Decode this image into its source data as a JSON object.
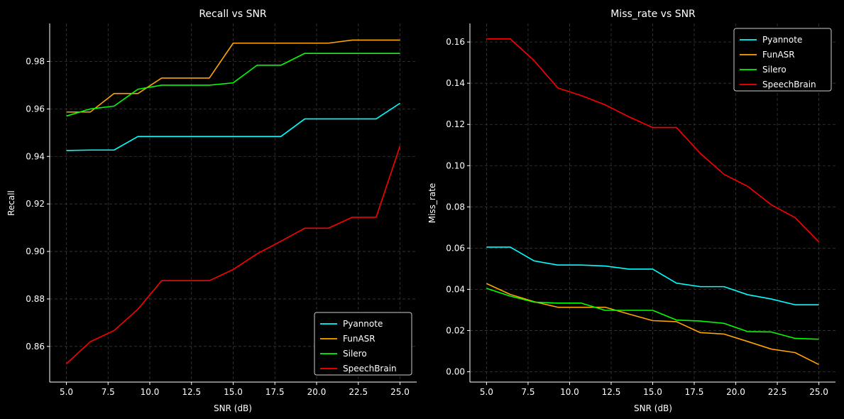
{
  "chart_data": [
    {
      "type": "line",
      "title": "Recall vs SNR",
      "xlabel": "SNR (dB)",
      "ylabel": "Recall",
      "xlim": [
        4.0,
        26.0
      ],
      "ylim": [
        0.845,
        0.996
      ],
      "xticks": [
        5.0,
        7.5,
        10.0,
        12.5,
        15.0,
        17.5,
        20.0,
        22.5,
        25.0
      ],
      "xtick_labels": [
        "5.0",
        "7.5",
        "10.0",
        "12.5",
        "15.0",
        "17.5",
        "20.0",
        "22.5",
        "25.0"
      ],
      "yticks": [
        0.86,
        0.88,
        0.9,
        0.92,
        0.94,
        0.96,
        0.98
      ],
      "ytick_labels": [
        "0.86",
        "0.88",
        "0.90",
        "0.92",
        "0.94",
        "0.96",
        "0.98"
      ],
      "grid": true,
      "legend_position": "lower-right",
      "x": [
        5.0,
        6.43,
        7.86,
        9.29,
        10.71,
        12.14,
        13.57,
        15.0,
        16.43,
        17.86,
        19.29,
        20.71,
        22.14,
        23.57,
        25.0
      ],
      "series": [
        {
          "name": "Pyannote",
          "color": "#00ffff",
          "values": [
            0.9425,
            0.9427,
            0.9427,
            0.9484,
            0.9484,
            0.9484,
            0.9484,
            0.9484,
            0.9484,
            0.9484,
            0.9558,
            0.9558,
            0.9558,
            0.9558,
            0.9624
          ]
        },
        {
          "name": "FunASR",
          "color": "#ffa500",
          "values": [
            0.9587,
            0.9587,
            0.9665,
            0.9665,
            0.973,
            0.973,
            0.973,
            0.9877,
            0.9877,
            0.9877,
            0.9877,
            0.9877,
            0.989,
            0.989,
            0.989
          ]
        },
        {
          "name": "Silero",
          "color": "#00ff00",
          "values": [
            0.957,
            0.96,
            0.9612,
            0.9683,
            0.97,
            0.97,
            0.97,
            0.971,
            0.9784,
            0.9784,
            0.9834,
            0.9834,
            0.9834,
            0.9834,
            0.9834
          ]
        },
        {
          "name": "SpeechBrain",
          "color": "#ff0000",
          "values": [
            0.8527,
            0.862,
            0.8667,
            0.8757,
            0.8877,
            0.8877,
            0.8877,
            0.8924,
            0.899,
            0.9043,
            0.9098,
            0.9098,
            0.9144,
            0.9144,
            0.9444
          ]
        }
      ]
    },
    {
      "type": "line",
      "title": "Miss_rate vs SNR",
      "xlabel": "SNR (dB)",
      "ylabel": "Miss_rate",
      "xlim": [
        4.0,
        26.0
      ],
      "ylim": [
        -0.005,
        0.169
      ],
      "xticks": [
        5.0,
        7.5,
        10.0,
        12.5,
        15.0,
        17.5,
        20.0,
        22.5,
        25.0
      ],
      "xtick_labels": [
        "5.0",
        "7.5",
        "10.0",
        "12.5",
        "15.0",
        "17.5",
        "20.0",
        "22.5",
        "25.0"
      ],
      "yticks": [
        0.0,
        0.02,
        0.04,
        0.06,
        0.08,
        0.1,
        0.12,
        0.14,
        0.16
      ],
      "ytick_labels": [
        "0.00",
        "0.02",
        "0.04",
        "0.06",
        "0.08",
        "0.10",
        "0.12",
        "0.14",
        "0.16"
      ],
      "grid": true,
      "legend_position": "upper-right",
      "x": [
        5.0,
        6.43,
        7.86,
        9.29,
        10.71,
        12.14,
        13.57,
        15.0,
        16.43,
        17.86,
        19.29,
        20.71,
        22.14,
        23.57,
        25.0
      ],
      "series": [
        {
          "name": "Pyannote",
          "color": "#00ffff",
          "values": [
            0.0605,
            0.0605,
            0.0538,
            0.0518,
            0.0518,
            0.0513,
            0.0498,
            0.0498,
            0.043,
            0.0413,
            0.0413,
            0.0374,
            0.0353,
            0.0325,
            0.0325
          ]
        },
        {
          "name": "FunASR",
          "color": "#ffa500",
          "values": [
            0.0428,
            0.0375,
            0.034,
            0.0313,
            0.0313,
            0.0313,
            0.028,
            0.0248,
            0.0243,
            0.019,
            0.0183,
            0.0147,
            0.011,
            0.0093,
            0.0035
          ]
        },
        {
          "name": "Silero",
          "color": "#00ff00",
          "values": [
            0.0405,
            0.0367,
            0.0338,
            0.0333,
            0.0333,
            0.0298,
            0.0298,
            0.0298,
            0.0251,
            0.0246,
            0.0235,
            0.0195,
            0.0193,
            0.0162,
            0.0158
          ]
        },
        {
          "name": "SpeechBrain",
          "color": "#ff0000",
          "values": [
            0.1615,
            0.1615,
            0.151,
            0.1377,
            0.134,
            0.1295,
            0.1237,
            0.1185,
            0.1185,
            0.106,
            0.0958,
            0.09,
            0.081,
            0.0748,
            0.063
          ]
        }
      ]
    }
  ]
}
